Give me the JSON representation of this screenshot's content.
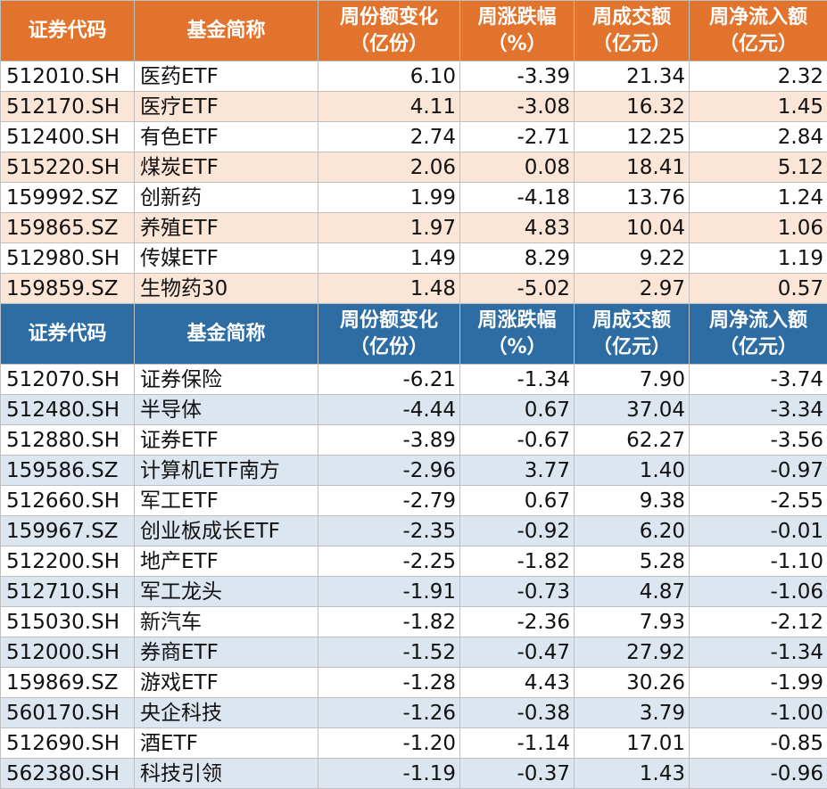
{
  "headers": {
    "code": "证券代码",
    "name": "基金简称",
    "share_change": [
      "周份额变化",
      "（亿份）"
    ],
    "weekly_return": [
      "周涨跌幅",
      "（%）"
    ],
    "turnover": [
      "周成交额",
      "（亿元）"
    ],
    "net_inflow": [
      "周净流入额",
      "（亿元）"
    ]
  },
  "inflow_rows": [
    {
      "code": "512010.SH",
      "name": "医药ETF",
      "share_change": "6.10",
      "weekly_return": "-3.39",
      "turnover": "21.34",
      "net_inflow": "2.32"
    },
    {
      "code": "512170.SH",
      "name": "医疗ETF",
      "share_change": "4.11",
      "weekly_return": "-3.08",
      "turnover": "16.32",
      "net_inflow": "1.45"
    },
    {
      "code": "512400.SH",
      "name": "有色ETF",
      "share_change": "2.74",
      "weekly_return": "-2.71",
      "turnover": "12.25",
      "net_inflow": "2.84"
    },
    {
      "code": "515220.SH",
      "name": "煤炭ETF",
      "share_change": "2.06",
      "weekly_return": "0.08",
      "turnover": "18.41",
      "net_inflow": "5.12"
    },
    {
      "code": "159992.SZ",
      "name": "创新药",
      "share_change": "1.99",
      "weekly_return": "-4.18",
      "turnover": "13.76",
      "net_inflow": "1.24"
    },
    {
      "code": "159865.SZ",
      "name": "养殖ETF",
      "share_change": "1.97",
      "weekly_return": "4.83",
      "turnover": "10.04",
      "net_inflow": "1.06"
    },
    {
      "code": "512980.SH",
      "name": "传媒ETF",
      "share_change": "1.49",
      "weekly_return": "8.29",
      "turnover": "9.22",
      "net_inflow": "1.19"
    },
    {
      "code": "159859.SZ",
      "name": "生物药30",
      "share_change": "1.48",
      "weekly_return": "-5.02",
      "turnover": "2.97",
      "net_inflow": "0.57"
    }
  ],
  "outflow_rows": [
    {
      "code": "512070.SH",
      "name": "证券保险",
      "share_change": "-6.21",
      "weekly_return": "-1.34",
      "turnover": "7.90",
      "net_inflow": "-3.74"
    },
    {
      "code": "512480.SH",
      "name": "半导体",
      "share_change": "-4.44",
      "weekly_return": "0.67",
      "turnover": "37.04",
      "net_inflow": "-3.34"
    },
    {
      "code": "512880.SH",
      "name": "证券ETF",
      "share_change": "-3.89",
      "weekly_return": "-0.67",
      "turnover": "62.27",
      "net_inflow": "-3.56"
    },
    {
      "code": "159586.SZ",
      "name": "计算机ETF南方",
      "share_change": "-2.96",
      "weekly_return": "3.77",
      "turnover": "1.40",
      "net_inflow": "-0.97"
    },
    {
      "code": "512660.SH",
      "name": "军工ETF",
      "share_change": "-2.79",
      "weekly_return": "0.67",
      "turnover": "9.38",
      "net_inflow": "-2.55"
    },
    {
      "code": "159967.SZ",
      "name": "创业板成长ETF",
      "share_change": "-2.35",
      "weekly_return": "-0.92",
      "turnover": "6.20",
      "net_inflow": "-0.01"
    },
    {
      "code": "512200.SH",
      "name": "地产ETF",
      "share_change": "-2.25",
      "weekly_return": "-1.82",
      "turnover": "5.28",
      "net_inflow": "-1.10"
    },
    {
      "code": "512710.SH",
      "name": "军工龙头",
      "share_change": "-1.91",
      "weekly_return": "-0.73",
      "turnover": "4.87",
      "net_inflow": "-1.06"
    },
    {
      "code": "515030.SH",
      "name": "新汽车",
      "share_change": "-1.82",
      "weekly_return": "-2.36",
      "turnover": "7.93",
      "net_inflow": "-2.12"
    },
    {
      "code": "512000.SH",
      "name": "券商ETF",
      "share_change": "-1.52",
      "weekly_return": "-0.47",
      "turnover": "27.92",
      "net_inflow": "-1.34"
    },
    {
      "code": "159869.SZ",
      "name": "游戏ETF",
      "share_change": "-1.28",
      "weekly_return": "4.43",
      "turnover": "30.26",
      "net_inflow": "-1.99"
    },
    {
      "code": "560170.SH",
      "name": "央企科技",
      "share_change": "-1.26",
      "weekly_return": "-0.38",
      "turnover": "3.79",
      "net_inflow": "-1.00"
    },
    {
      "code": "512690.SH",
      "name": "酒ETF",
      "share_change": "-1.20",
      "weekly_return": "-1.14",
      "turnover": "17.01",
      "net_inflow": "-0.85"
    },
    {
      "code": "562380.SH",
      "name": "科技引领",
      "share_change": "-1.19",
      "weekly_return": "-0.37",
      "turnover": "1.43",
      "net_inflow": "-0.96"
    }
  ],
  "colors": {
    "inflow_header": "#e2732d",
    "inflow_alt_row": "#fbe5d6",
    "outflow_header": "#2e6da4",
    "outflow_alt_row": "#dce6f1"
  }
}
